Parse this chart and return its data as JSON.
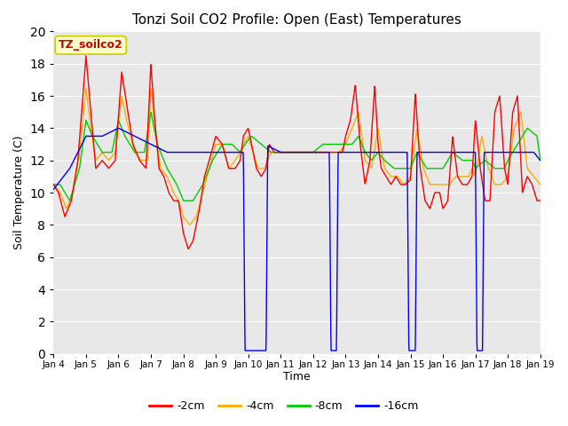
{
  "title": "Tonzi Soil CO2 Profile: Open (East) Temperatures",
  "ylabel": "Soil Temperature (C)",
  "xlabel": "Time",
  "legend_label": "TZ_soilco2",
  "series_labels": [
    "-2cm",
    "-4cm",
    "-8cm",
    "-16cm"
  ],
  "series_colors": [
    "#ff0000",
    "#ffaa00",
    "#00cc00",
    "#0000ff"
  ],
  "ylim": [
    0,
    20
  ],
  "plot_bg_color": "#e8e8e8",
  "legend_box_facecolor": "#ffffcc",
  "legend_box_edgecolor": "#cccc00",
  "legend_text_color": "#cc0000",
  "tick_labels": [
    "Jan 4",
    "Jan 5",
    "Jan 6",
    "Jan 7",
    "Jan 8",
    "Jan 9",
    "Jan 10",
    "Jan 11",
    "Jan 12",
    "Jan 13",
    "Jan 14",
    "Jan 15",
    "Jan 16",
    "Jan 17",
    "Jan 18",
    "Jan 19"
  ],
  "yticks": [
    0,
    2,
    4,
    6,
    8,
    10,
    12,
    14,
    16,
    18,
    20
  ]
}
